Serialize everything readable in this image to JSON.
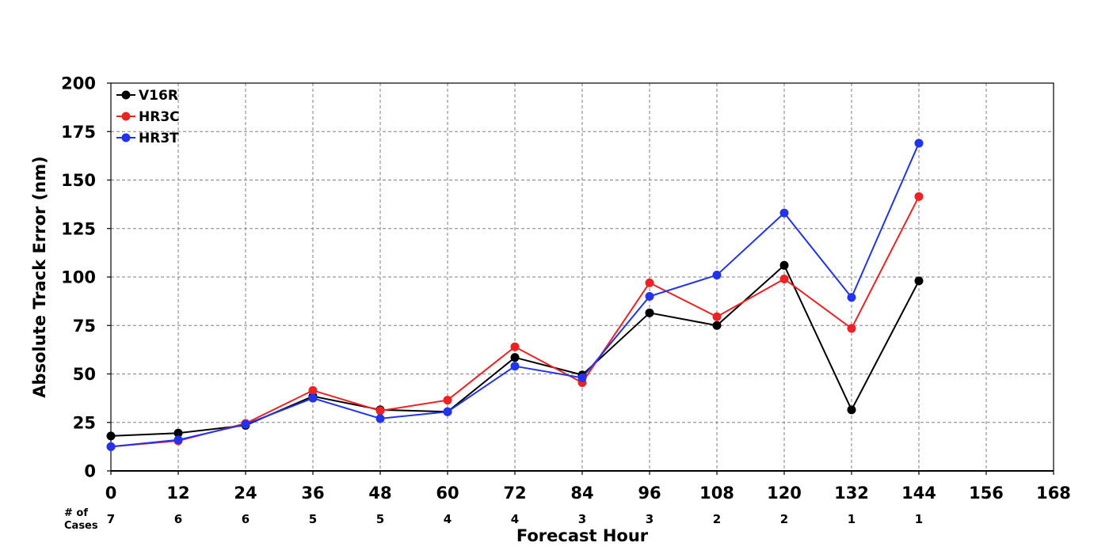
{
  "chart_data": {
    "type": "line",
    "xlabel": "Forecast Hour",
    "ylabel": "Absolute Track Error (nm)",
    "xlim": [
      0,
      168
    ],
    "ylim": [
      0,
      200
    ],
    "x_ticks": [
      0,
      12,
      24,
      36,
      48,
      60,
      72,
      84,
      96,
      108,
      120,
      132,
      144,
      156,
      168
    ],
    "y_ticks": [
      0,
      25,
      50,
      75,
      100,
      125,
      150,
      175,
      200
    ],
    "grid": true,
    "legend_position": "top-left",
    "cases_header": [
      "# of",
      "Cases"
    ],
    "cases": [
      {
        "x": 0,
        "label": "7"
      },
      {
        "x": 12,
        "label": "6"
      },
      {
        "x": 24,
        "label": "6"
      },
      {
        "x": 36,
        "label": "5"
      },
      {
        "x": 48,
        "label": "5"
      },
      {
        "x": 60,
        "label": "4"
      },
      {
        "x": 72,
        "label": "4"
      },
      {
        "x": 84,
        "label": "3"
      },
      {
        "x": 96,
        "label": "3"
      },
      {
        "x": 108,
        "label": "2"
      },
      {
        "x": 120,
        "label": "2"
      },
      {
        "x": 132,
        "label": "1"
      },
      {
        "x": 144,
        "label": "1"
      }
    ],
    "series": [
      {
        "name": "V16R",
        "color": "#000000",
        "x": [
          0,
          12,
          24,
          36,
          48,
          60,
          72,
          84,
          96,
          108,
          120,
          132,
          144
        ],
        "values": [
          18,
          19.5,
          23.5,
          38.5,
          31.5,
          30.5,
          58.5,
          49.5,
          81.5,
          75,
          106,
          31.5,
          98
        ]
      },
      {
        "name": "HR3C",
        "color": "#ee2222",
        "x": [
          0,
          12,
          24,
          36,
          48,
          60,
          72,
          84,
          96,
          108,
          120,
          132,
          144
        ],
        "values": [
          12.5,
          15.5,
          24.5,
          41.5,
          31,
          36.5,
          64,
          45.5,
          97,
          79.5,
          99,
          73.5,
          141.5
        ]
      },
      {
        "name": "HR3T",
        "color": "#2233ee",
        "x": [
          0,
          12,
          24,
          36,
          48,
          60,
          72,
          84,
          96,
          108,
          120,
          132,
          144
        ],
        "values": [
          12.5,
          16,
          24,
          37.5,
          27,
          30.5,
          54,
          48,
          90,
          101,
          133,
          89.5,
          169
        ]
      }
    ]
  }
}
